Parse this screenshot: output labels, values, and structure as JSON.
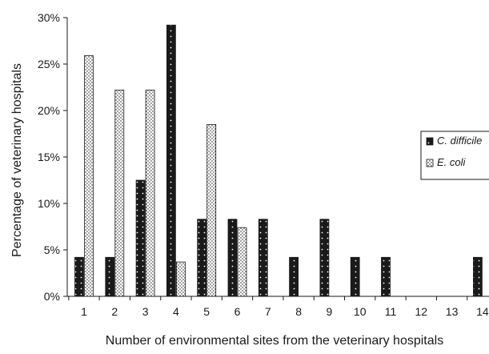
{
  "chart_data": {
    "type": "bar",
    "title": "",
    "xlabel": "Number of environmental sites from the veterinary hospitals",
    "ylabel": "Percentage of veterinary hospitals",
    "categories": [
      "1",
      "2",
      "3",
      "4",
      "5",
      "6",
      "7",
      "8",
      "9",
      "10",
      "11",
      "12",
      "13",
      "14"
    ],
    "series": [
      {
        "name": "C. difficile",
        "values": [
          4.2,
          4.2,
          12.5,
          29.2,
          8.3,
          8.3,
          8.3,
          4.2,
          8.3,
          4.2,
          4.2,
          0,
          0,
          4.2
        ],
        "color": "#1a1a1a",
        "pattern": "dark-dotted"
      },
      {
        "name": "E. coli",
        "values": [
          25.9,
          22.2,
          22.2,
          3.7,
          18.5,
          7.4,
          0,
          0,
          0,
          0,
          0,
          0,
          0,
          0
        ],
        "color": "#ffffff",
        "pattern": "light-dotted"
      }
    ],
    "ylim": [
      0,
      30
    ],
    "yticks": [
      0,
      5,
      10,
      15,
      20,
      25,
      30
    ],
    "ytick_labels": [
      "0%",
      "5%",
      "10%",
      "15%",
      "20%",
      "25%",
      "30%"
    ],
    "grid": false,
    "legend_position": "right"
  }
}
